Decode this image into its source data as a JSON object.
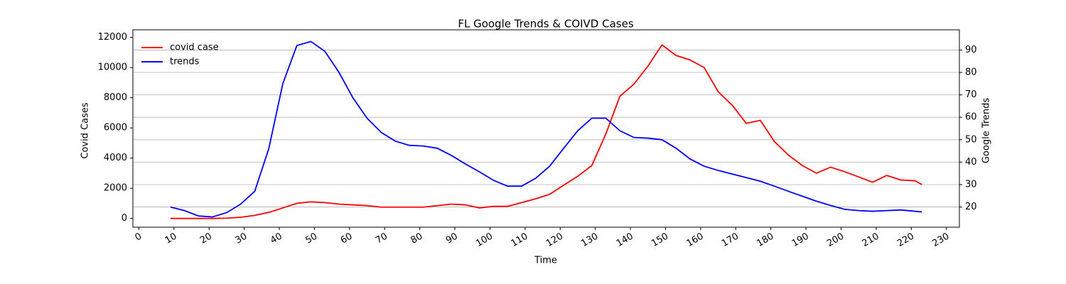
{
  "chart_data": {
    "type": "line",
    "title": "FL Google Trends & COIVD Cases",
    "x_label": "Time",
    "y_label": "Covid Cases",
    "y2_label": "Google Trends",
    "x": [
      9,
      13,
      17,
      21,
      25,
      29,
      33,
      37,
      41,
      45,
      49,
      53,
      57,
      61,
      65,
      69,
      73,
      77,
      81,
      85,
      89,
      93,
      97,
      101,
      105,
      109,
      113,
      117,
      121,
      125,
      129,
      133,
      137,
      141,
      145,
      149,
      153,
      157,
      161,
      165,
      169,
      173,
      177,
      181,
      185,
      189,
      193,
      197,
      201,
      205,
      209,
      213,
      217,
      221,
      223
    ],
    "series": [
      {
        "name": "covid case",
        "color": "#ff0000",
        "values": [
          0,
          0,
          0,
          0,
          20,
          80,
          200,
          400,
          700,
          1000,
          1100,
          1050,
          950,
          900,
          850,
          750,
          750,
          750,
          750,
          850,
          950,
          900,
          700,
          800,
          800,
          1050,
          1300,
          1600,
          2200,
          2800,
          3500,
          5600,
          8100,
          8900,
          10100,
          11500,
          10800,
          10500,
          10000,
          8400,
          7500,
          6300,
          6500,
          5100,
          4200,
          3500,
          3000,
          3400,
          3100,
          2750,
          2400,
          2850,
          2550,
          2500,
          2250
        ]
      },
      {
        "name": "trends",
        "color": "#0000ff",
        "axis": "y2",
        "values": [
          20,
          18.4,
          16,
          15.6,
          17.5,
          21.3,
          27,
          46,
          75,
          92,
          93.8,
          89.4,
          80,
          68.6,
          59.6,
          53.3,
          49.4,
          47.5,
          47.2,
          46.2,
          43,
          39.2,
          35.7,
          31.9,
          29.3,
          29.3,
          32.8,
          38.2,
          46.2,
          54,
          59.6,
          59.6,
          54,
          51,
          50.7,
          50,
          46.2,
          41.4,
          38.2,
          36.3,
          34.7,
          33.1,
          31.5,
          29.3,
          27,
          24.8,
          22.6,
          20.7,
          19,
          18.4,
          18.1,
          18.4,
          18.7,
          18.1,
          17.8
        ]
      }
    ],
    "xlim": [
      -1.7,
      233.7
    ],
    "xticks": [
      0,
      10,
      20,
      30,
      40,
      50,
      60,
      70,
      80,
      90,
      100,
      110,
      120,
      130,
      140,
      150,
      160,
      170,
      180,
      190,
      200,
      210,
      220,
      230
    ],
    "ylim": [
      -580,
      12500
    ],
    "yticks": [
      0,
      2000,
      4000,
      6000,
      8000,
      10000,
      12000
    ],
    "y2lim": [
      11,
      99
    ],
    "y2ticks": [
      20,
      30,
      40,
      50,
      60,
      70,
      80,
      90
    ],
    "grid": "y2",
    "legend": "upper left"
  }
}
